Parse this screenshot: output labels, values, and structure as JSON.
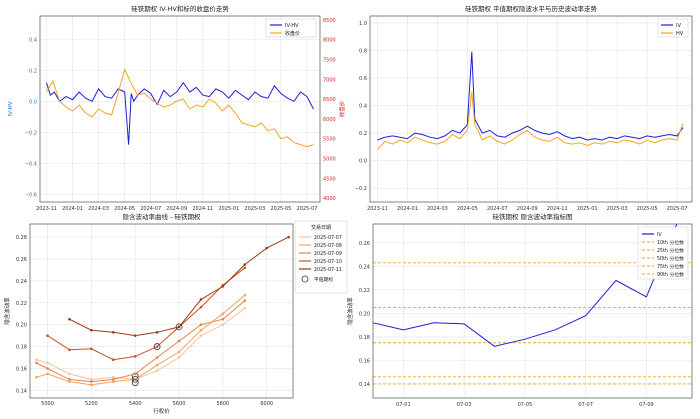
{
  "chart_data": [
    {
      "type": "line",
      "title": "硅铁期权 IV-HV和标的收盘价走势",
      "xlabel": "",
      "ylabel": "IV-HV",
      "y2label": "收盘价",
      "xticks": [
        "2023-11",
        "2024-01",
        "2024-03",
        "2024-05",
        "2024-07",
        "2024-09",
        "2024-11",
        "2025-01",
        "2025-03",
        "2025-05",
        "2025-07"
      ],
      "yticks": [
        "−0.6",
        "−0.4",
        "−0.2",
        "0.0",
        "0.2",
        "0.4"
      ],
      "y2ticks": [
        "4000",
        "4500",
        "5000",
        "5500",
        "6000",
        "6500",
        "7000",
        "7500",
        "8000",
        "8500"
      ],
      "ylim": [
        -0.65,
        0.55
      ],
      "y2lim": [
        3900,
        8600
      ],
      "legend_position": "top-right",
      "grid": true,
      "series": [
        {
          "name": "IV-HV",
          "axis": "left",
          "color": "#1f1fd6",
          "x": [
            0,
            0.3,
            0.6,
            1,
            1.5,
            2,
            2.5,
            3,
            3.5,
            4,
            4.5,
            5,
            5.5,
            6,
            6.3,
            6.5,
            6.7,
            7,
            7.5,
            8,
            8.5,
            9,
            9.5,
            10,
            10.5,
            11,
            11.5,
            12,
            12.5,
            13,
            13.5,
            14,
            14.5,
            15,
            15.5,
            16,
            16.5,
            17,
            17.5,
            18,
            18.5,
            19,
            19.5,
            20,
            20.5
          ],
          "values": [
            0.12,
            0.04,
            0.06,
            0.0,
            0.03,
            0.01,
            0.06,
            0.02,
            0.0,
            0.08,
            0.03,
            0.02,
            0.08,
            0.06,
            -0.28,
            0.05,
            0.0,
            0.04,
            0.08,
            0.05,
            -0.02,
            0.07,
            0.03,
            0.06,
            0.12,
            0.06,
            0.09,
            0.04,
            0.03,
            0.08,
            0.06,
            0.02,
            0.07,
            0.04,
            0.01,
            0.06,
            0.03,
            0.02,
            0.1,
            0.05,
            0.02,
            0.0,
            0.06,
            0.03,
            -0.05
          ]
        },
        {
          "name": "收盘价",
          "axis": "right",
          "color": "#f5a623",
          "x": [
            0,
            0.5,
            1,
            1.5,
            2,
            2.5,
            3,
            3.5,
            4,
            4.5,
            5,
            5.5,
            6,
            6.5,
            7,
            7.5,
            8,
            8.5,
            9,
            9.5,
            10,
            10.5,
            11,
            11.5,
            12,
            12.5,
            13,
            13.5,
            14,
            14.5,
            15,
            15.5,
            16,
            16.5,
            17,
            17.5,
            18,
            18.5,
            19,
            19.5,
            20,
            20.5
          ],
          "values": [
            6700,
            6950,
            6450,
            6300,
            6200,
            6350,
            6150,
            6050,
            6250,
            6150,
            6100,
            6650,
            7250,
            6900,
            6600,
            6650,
            6500,
            6400,
            6300,
            6350,
            6450,
            6500,
            6250,
            6350,
            6300,
            6500,
            6400,
            6200,
            6350,
            6150,
            5900,
            5850,
            5800,
            5900,
            5700,
            5750,
            5500,
            5550,
            5400,
            5350,
            5300,
            5350
          ]
        }
      ]
    },
    {
      "type": "line",
      "title": "硅铁期权 平值期权隐波水平与历史波动率走势",
      "xlabel": "",
      "ylabel": "",
      "xticks": [
        "2023-11",
        "2024-01",
        "2024-03",
        "2024-05",
        "2024-07",
        "2024-09",
        "2024-11",
        "2025-01",
        "2025-03",
        "2025-05",
        "2025-07"
      ],
      "yticks": [
        "−0.2",
        "0.0",
        "0.2",
        "0.4",
        "0.6",
        "0.8",
        "1.0"
      ],
      "ylim": [
        -0.3,
        1.05
      ],
      "legend_position": "top-right",
      "grid": true,
      "series": [
        {
          "name": "IV",
          "color": "#1f1fd6",
          "x": [
            0,
            0.5,
            1,
            1.5,
            2,
            2.5,
            3,
            3.5,
            4,
            4.5,
            5,
            5.5,
            6,
            6.3,
            6.5,
            6.8,
            7,
            7.5,
            8,
            8.5,
            9,
            9.5,
            10,
            10.5,
            11,
            11.5,
            12,
            12.5,
            13,
            13.5,
            14,
            14.5,
            15,
            15.5,
            16,
            16.5,
            17,
            17.5,
            18,
            18.5,
            19,
            19.5,
            20,
            20.4
          ],
          "values": [
            0.15,
            0.17,
            0.18,
            0.17,
            0.16,
            0.2,
            0.19,
            0.17,
            0.16,
            0.18,
            0.22,
            0.2,
            0.26,
            0.79,
            0.3,
            0.24,
            0.2,
            0.22,
            0.18,
            0.17,
            0.2,
            0.22,
            0.25,
            0.22,
            0.2,
            0.19,
            0.21,
            0.18,
            0.16,
            0.17,
            0.15,
            0.16,
            0.15,
            0.17,
            0.16,
            0.18,
            0.17,
            0.16,
            0.18,
            0.17,
            0.18,
            0.19,
            0.18,
            0.24
          ]
        },
        {
          "name": "HV",
          "color": "#f5a623",
          "x": [
            0,
            0.5,
            1,
            1.5,
            2,
            2.5,
            3,
            3.5,
            4,
            4.5,
            5,
            5.5,
            6,
            6.3,
            6.5,
            6.8,
            7,
            7.5,
            8,
            8.5,
            9,
            9.5,
            10,
            10.5,
            11,
            11.5,
            12,
            12.5,
            13,
            13.5,
            14,
            14.5,
            15,
            15.5,
            16,
            16.5,
            17,
            17.5,
            18,
            18.5,
            19,
            19.5,
            20,
            20.4
          ],
          "values": [
            0.08,
            0.14,
            0.12,
            0.15,
            0.13,
            0.17,
            0.15,
            0.13,
            0.12,
            0.14,
            0.19,
            0.16,
            0.22,
            0.5,
            0.26,
            0.2,
            0.15,
            0.18,
            0.14,
            0.12,
            0.15,
            0.19,
            0.22,
            0.17,
            0.15,
            0.14,
            0.17,
            0.13,
            0.12,
            0.13,
            0.11,
            0.13,
            0.12,
            0.14,
            0.13,
            0.15,
            0.14,
            0.12,
            0.15,
            0.13,
            0.15,
            0.16,
            0.15,
            0.27
          ]
        }
      ]
    },
    {
      "type": "line",
      "title": "隐含波动率曲线 - 硅铁期权",
      "xlabel": "行权价",
      "ylabel": "隐含波动率",
      "xticks": [
        "5000",
        "5200",
        "5400",
        "5600",
        "5800",
        "6000"
      ],
      "yticks": [
        "0.14",
        "0.16",
        "0.18",
        "0.20",
        "0.22",
        "0.24",
        "0.26",
        "0.28"
      ],
      "xlim": [
        4920,
        6120
      ],
      "ylim": [
        0.133,
        0.292
      ],
      "legend_title": "交易日期",
      "legend_position": "top-right",
      "grid": true,
      "atm_label": "平值期权",
      "series": [
        {
          "name": "2025-07-07",
          "color": "#f6c49a",
          "x": [
            4950,
            5000,
            5100,
            5200,
            5300,
            5400,
            5500,
            5600,
            5700,
            5800,
            5900
          ],
          "values": [
            0.168,
            0.165,
            0.155,
            0.15,
            0.152,
            0.15,
            0.158,
            0.17,
            0.19,
            0.2,
            0.215
          ],
          "atm": [
            5400,
            0.153
          ]
        },
        {
          "name": "2025-07-08",
          "color": "#f2a35e",
          "x": [
            4950,
            5000,
            5100,
            5200,
            5300,
            5400,
            5500,
            5600,
            5700,
            5800,
            5900
          ],
          "values": [
            0.152,
            0.155,
            0.148,
            0.145,
            0.148,
            0.15,
            0.163,
            0.175,
            0.195,
            0.21,
            0.227
          ],
          "atm": [
            5400,
            0.15
          ]
        },
        {
          "name": "2025-07-09",
          "color": "#e8824a",
          "x": [
            4950,
            5000,
            5100,
            5200,
            5300,
            5400,
            5500,
            5600,
            5700,
            5800,
            5900
          ],
          "values": [
            0.165,
            0.16,
            0.15,
            0.148,
            0.15,
            0.155,
            0.17,
            0.185,
            0.2,
            0.205,
            0.222
          ],
          "atm": [
            5400,
            0.147
          ]
        },
        {
          "name": "2025-07-10",
          "color": "#c8531e",
          "x": [
            5000,
            5100,
            5200,
            5300,
            5400,
            5500,
            5600,
            5700,
            5800,
            5900
          ],
          "values": [
            0.19,
            0.177,
            0.178,
            0.168,
            0.171,
            0.18,
            0.198,
            0.216,
            0.236,
            0.252
          ],
          "atm": [
            5500,
            0.18
          ]
        },
        {
          "name": "2025-07-11",
          "color": "#9c3a14",
          "x": [
            5100,
            5200,
            5300,
            5400,
            5500,
            5600,
            5700,
            5800,
            5900,
            6000,
            6100
          ],
          "values": [
            0.205,
            0.195,
            0.193,
            0.19,
            0.193,
            0.198,
            0.223,
            0.235,
            0.255,
            0.27,
            0.28
          ],
          "atm": [
            5600,
            0.198
          ]
        }
      ]
    },
    {
      "type": "line",
      "title": "硅铁期权 隐含波动率指标图",
      "xlabel": "",
      "ylabel": "隐含波动率",
      "xticks": [
        "07-01",
        "07-03",
        "07-05",
        "07-07",
        "07-09"
      ],
      "yticks": [
        "0.14",
        "0.16",
        "0.18",
        "0.20",
        "0.22",
        "0.24",
        "0.26"
      ],
      "xlim": [
        0,
        10.5
      ],
      "ylim": [
        0.128,
        0.276
      ],
      "legend_position": "top-right",
      "grid": true,
      "series": [
        {
          "name": "IV",
          "color": "#1f1fd6",
          "x": [
            0,
            1,
            2,
            3,
            4,
            5,
            6,
            7,
            8,
            9,
            10
          ],
          "values": [
            0.192,
            0.186,
            0.192,
            0.191,
            0.172,
            0.178,
            0.186,
            0.198,
            0.228,
            0.214,
            0.276
          ]
        }
      ],
      "percentiles": [
        {
          "name": "10th 分位数",
          "value": 0.14
        },
        {
          "name": "25th 分位数",
          "value": 0.146
        },
        {
          "name": "50th 分位数",
          "value": 0.175
        },
        {
          "name": "75th 分位数",
          "value": 0.205
        },
        {
          "name": "90th 分位数",
          "value": 0.243
        }
      ]
    }
  ]
}
